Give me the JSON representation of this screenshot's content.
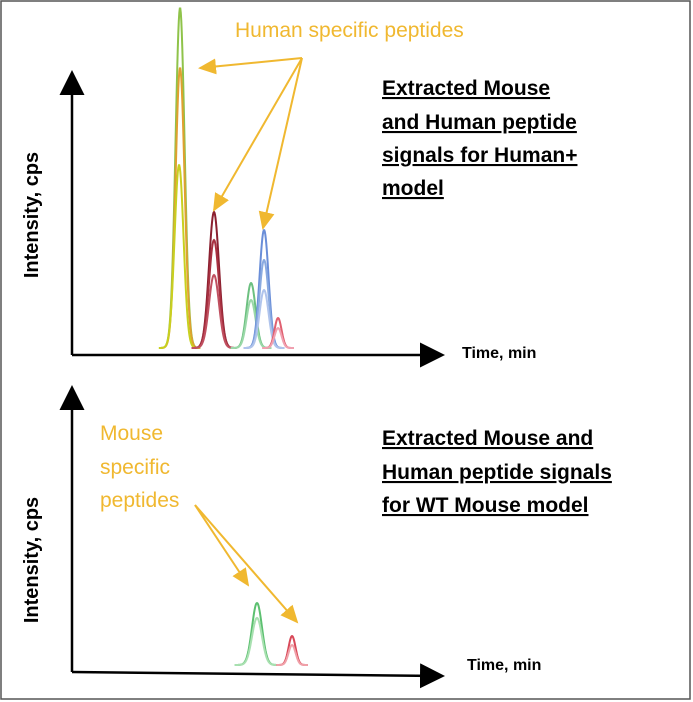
{
  "top_panel": {
    "y_axis_label": "Intensity, cps",
    "x_axis_label": "Time, min",
    "callout": "Human specific peptides",
    "caption": [
      "Extracted Mouse",
      "and Human peptide",
      "signals for Human+",
      "model"
    ]
  },
  "bottom_panel": {
    "y_axis_label": "Intensity, cps",
    "x_axis_label": "Time, min",
    "callout": [
      "Mouse",
      "specific",
      "peptides"
    ],
    "caption": [
      "Extracted Mouse and",
      "Human peptide signals",
      "for WT Mouse model"
    ]
  }
}
